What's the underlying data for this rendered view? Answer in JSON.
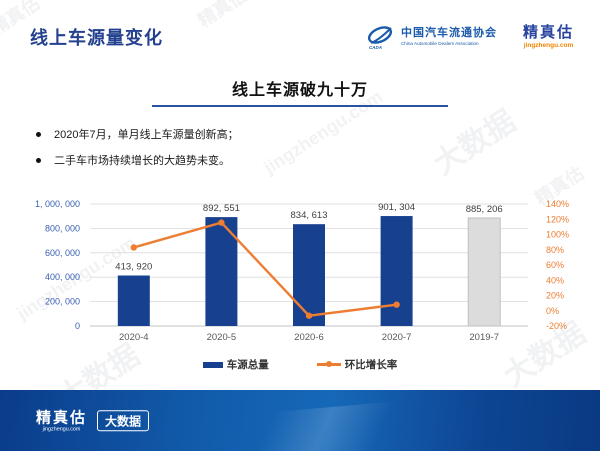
{
  "header": {
    "title": "线上车源量变化",
    "logos": {
      "cada": {
        "name_cn": "中国汽车流通协会",
        "name_en": "China Automobile Dealers Association",
        "acronym": "CADA"
      },
      "jingzhengu": {
        "name": "精真估",
        "domain": "jingzhengu.com"
      }
    }
  },
  "section": {
    "subtitle": "线上车源破九十万"
  },
  "bullets": [
    "2020年7月，单月线上车源量创新高；",
    "二手车市场持续增长的大趋势未变。"
  ],
  "chart_data": {
    "type": "bar",
    "title": "线上车源破九十万",
    "categories": [
      "2020-4",
      "2020-5",
      "2020-6",
      "2020-7",
      "2019-7"
    ],
    "series": [
      {
        "name": "车源总量",
        "type": "bar",
        "axis": "left",
        "values": [
          413920,
          892551,
          834613,
          901304,
          885206
        ],
        "labels": [
          "413, 920",
          "892, 551",
          "834, 613",
          "901, 304",
          "885, 206"
        ]
      },
      {
        "name": "环比增长率",
        "type": "line",
        "axis": "right",
        "values": [
          83,
          115.6,
          -6.5,
          8.0
        ],
        "category_indices": [
          0,
          1,
          2,
          3
        ]
      }
    ],
    "left_axis": {
      "min": 0,
      "max": 1000000,
      "tick_step": 200000,
      "ticks": [
        "0",
        "200, 000",
        "400, 000",
        "600, 000",
        "800, 000",
        "1, 000, 000"
      ]
    },
    "right_axis": {
      "min": -20,
      "max": 140,
      "tick_step": 20,
      "ticks": [
        "-20%",
        "0%",
        "20%",
        "40%",
        "60%",
        "80%",
        "100%",
        "120%",
        "140%"
      ]
    },
    "legend": [
      {
        "label": "车源总量"
      },
      {
        "label": "环比增长率"
      }
    ],
    "legend_position": "bottom",
    "grid": true,
    "colors": {
      "bar": "#17418f",
      "bar_highlight_last": "#dcdcdc",
      "bar_last_border": "#bfbfbf",
      "line": "#ed7d31",
      "left_axis_text": "#3a5fae",
      "right_axis_text": "#ed7d31",
      "grid": "#d9d9d9",
      "axis_line": "#c3c3c3",
      "value_label": "#3f3f3f",
      "category_label": "#595959"
    }
  },
  "footer": {
    "logo_name": "精真估",
    "logo_domain": "jingzhengu.com",
    "badge": "大数据"
  },
  "watermarks": {
    "brand": "精真估",
    "domain": "jingzhengu.com",
    "big_data": "大数据"
  }
}
